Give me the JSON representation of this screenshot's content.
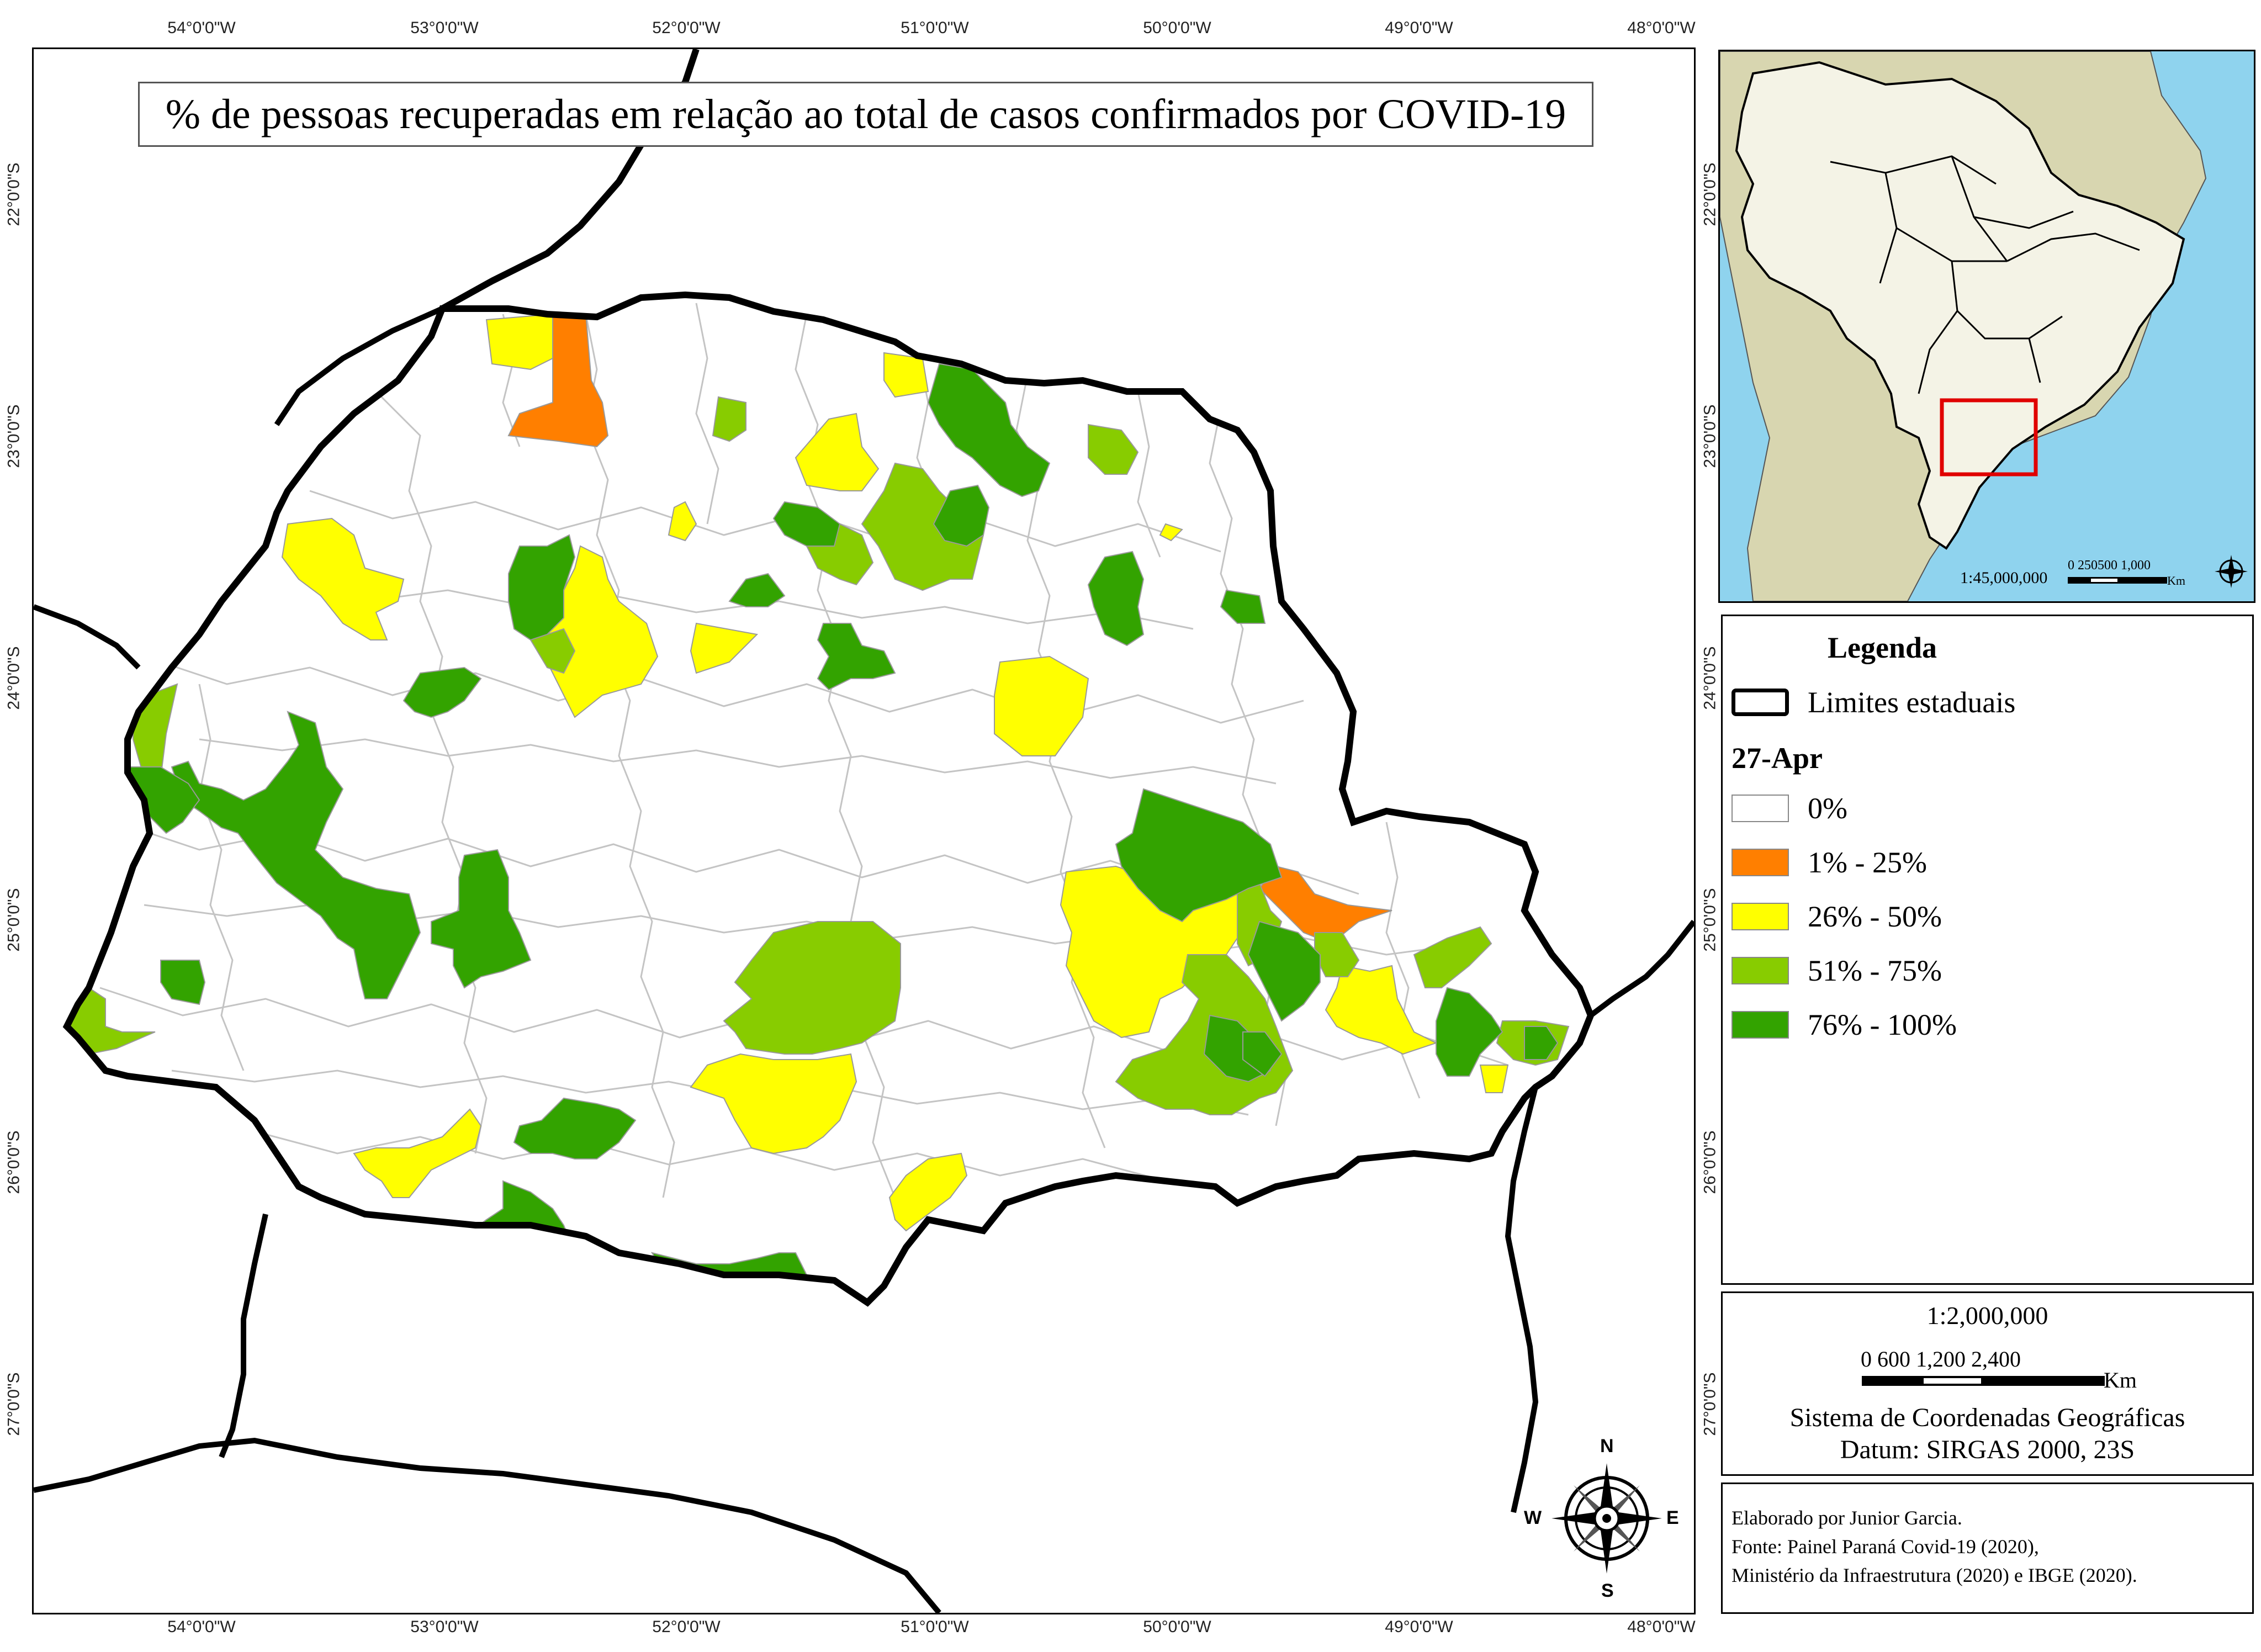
{
  "main_map": {
    "title": "% de pessoas recuperadas em relação ao total de casos confirmados por COVID-19",
    "longitude_ticks": [
      "54°0'0\"W",
      "53°0'0\"W",
      "52°0'0\"W",
      "51°0'0\"W",
      "50°0'0\"W",
      "49°0'0\"W",
      "48°0'0\"W"
    ],
    "latitude_ticks": [
      "22°0'0\"S",
      "23°0'0\"S",
      "24°0'0\"S",
      "25°0'0\"S",
      "26°0'0\"S",
      "27°0'0\"S"
    ],
    "colors": {
      "state_border": "#000000",
      "municipal_border": "#bbbbbb",
      "zero": "#ffffff"
    }
  },
  "inset": {
    "scale": "1:45,000,000",
    "scale_ticks": "0  250500      1,000",
    "unit": "Km",
    "colors": {
      "ocean": "#8fd3ee",
      "south_america": "#d8d6b0",
      "brazil": "#f4f3e6",
      "highlight": "#e00000"
    }
  },
  "legend": {
    "title": "Legenda",
    "state_limits_label": "Limites estaduais",
    "date": "27-Apr",
    "classes": [
      {
        "label": "0%",
        "color": "#ffffff"
      },
      {
        "label": "1% - 25%",
        "color": "#ff7f00"
      },
      {
        "label": "26% - 50%",
        "color": "#ffff00"
      },
      {
        "label": "51% - 75%",
        "color": "#88cc00"
      },
      {
        "label": "76% - 100%",
        "color": "#33a300"
      }
    ]
  },
  "scale_box": {
    "ratio": "1:2,000,000",
    "ticks": "0     600 1,200          2,400",
    "unit": "Km",
    "coordinate_system": "Sistema de Coordenadas Geográficas",
    "datum": "Datum: SIRGAS 2000, 23S"
  },
  "credits": {
    "line1": "Elaborado por Junior Garcia.",
    "line2": "Fonte: Painel Paraná Covid-19 (2020),",
    "line3": "Ministério da Infraestrutura (2020) e IBGE (2020)."
  },
  "compass": {
    "n": "N",
    "s": "S",
    "e": "E",
    "w": "W"
  }
}
